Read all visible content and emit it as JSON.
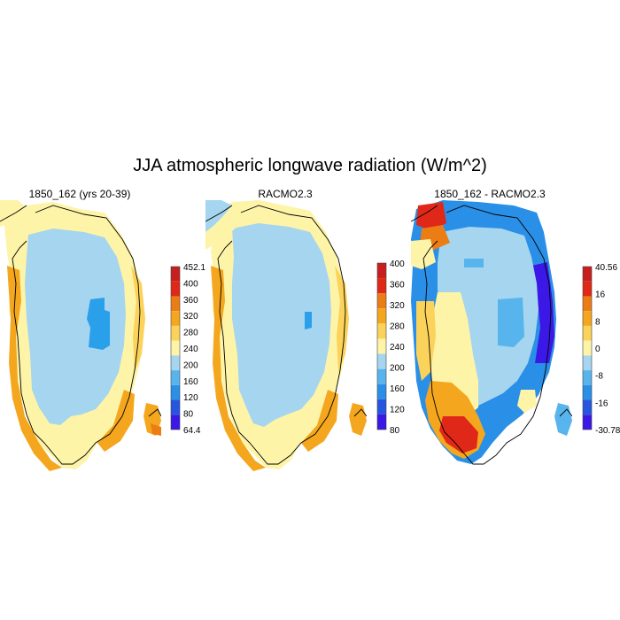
{
  "title": "JJA atmospheric longwave radiation (W/m^2)",
  "colors": {
    "pale_yellow": "#fdf4a8",
    "light_orange": "#fbd25a",
    "orange": "#f4a71e",
    "dark_orange": "#ec7d14",
    "red": "#e02818",
    "dark_red": "#c71e1e",
    "light_blue": "#a6d5ef",
    "sky_blue": "#58b4ec",
    "blue": "#2a8fe6",
    "dark_blue": "#2656e0",
    "violet": "#3b18e6"
  },
  "panels": [
    {
      "title": "1850_162 (yrs 20-39)",
      "colorbar": {
        "labels": [
          "452.1",
          "400",
          "360",
          "320",
          "280",
          "240",
          "200",
          "160",
          "120",
          "80",
          "64.4"
        ],
        "colors": [
          "#c71e1e",
          "#e02818",
          "#ec7d14",
          "#f4a71e",
          "#fbd25a",
          "#fdf4a8",
          "#a6d5ef",
          "#58b4ec",
          "#2a8fe6",
          "#2656e0",
          "#3b18e6"
        ]
      }
    },
    {
      "title": "RACMO2.3",
      "colorbar": {
        "labels": [
          "400",
          "360",
          "320",
          "280",
          "240",
          "200",
          "160",
          "120",
          "80"
        ],
        "colors": [
          "#c71e1e",
          "#e02818",
          "#ec7d14",
          "#f4a71e",
          "#fbd25a",
          "#fdf4a8",
          "#a6d5ef",
          "#58b4ec",
          "#2a8fe6",
          "#2656e0",
          "#3b18e6"
        ]
      }
    },
    {
      "title": "1850_162 - RACMO2.3",
      "colorbar": {
        "labels": [
          "40.56",
          "16",
          "8",
          "0",
          "-8",
          "-16",
          "-30.78"
        ],
        "colors": [
          "#c71e1e",
          "#e02818",
          "#ec7d14",
          "#f4a71e",
          "#fbd25a",
          "#fdf4a8",
          "#a6d5ef",
          "#58b4ec",
          "#2a8fe6",
          "#2656e0",
          "#3b18e6"
        ]
      }
    }
  ]
}
